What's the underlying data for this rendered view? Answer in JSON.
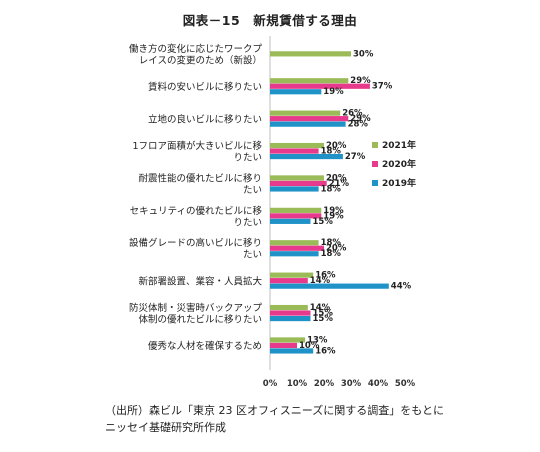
{
  "chart_data": {
    "type": "bar",
    "orientation": "horizontal",
    "title": "図表－15　新規賃借する理由",
    "categories": [
      [
        "働き方の変化に応じたワークプ",
        "レイスの変更のため（新設）"
      ],
      [
        "賃料の安いビルに移りたい"
      ],
      [
        "立地の良いビルに移りたい"
      ],
      [
        "1フロア面積が大きいビルに移",
        "りたい"
      ],
      [
        "耐震性能の優れたビルに移り",
        "たい"
      ],
      [
        "セキュリティの優れたビルに移",
        "りたい"
      ],
      [
        "設備グレードの高いビルに移り",
        "たい"
      ],
      [
        "新部署設置、業容・人員拡大"
      ],
      [
        "防災体制・災害時バックアップ",
        "体制の優れたビルに移りたい"
      ],
      [
        "優秀な人材を確保するため"
      ]
    ],
    "series": [
      {
        "name": "2021年",
        "color": "#9bbb59",
        "values": [
          30,
          29,
          26,
          20,
          20,
          19,
          18,
          16,
          14,
          13
        ]
      },
      {
        "name": "2020年",
        "color": "#e83a8c",
        "values": [
          null,
          37,
          29,
          18,
          21,
          19,
          20,
          14,
          15,
          10
        ]
      },
      {
        "name": "2019年",
        "color": "#1f93c8",
        "values": [
          null,
          19,
          28,
          27,
          18,
          15,
          18,
          44,
          15,
          16
        ]
      }
    ],
    "value_labels": [
      [
        "30%"
      ],
      [
        "29%",
        "37%",
        "19%"
      ],
      [
        "26%",
        "29%",
        "28%"
      ],
      [
        "20%",
        "18%",
        "27%"
      ],
      [
        "20%",
        "21%",
        "18%"
      ],
      [
        "19%",
        "19%",
        "15%"
      ],
      [
        "18%",
        "20%",
        "18%"
      ],
      [
        "16%",
        "14%",
        "44%"
      ],
      [
        "14%",
        "15%",
        "15%"
      ],
      [
        "13%",
        "10%",
        "16%"
      ]
    ],
    "xlim": [
      0,
      50
    ],
    "xticks": [
      "0%",
      "10%",
      "20%",
      "30%",
      "40%",
      "50%"
    ],
    "legend_position": "right",
    "grid": false
  },
  "source_lines": [
    "（出所）森ビル「東京 23 区オフィスニーズに関する調査」をもとに",
    "ニッセイ基礎研究所作成"
  ]
}
